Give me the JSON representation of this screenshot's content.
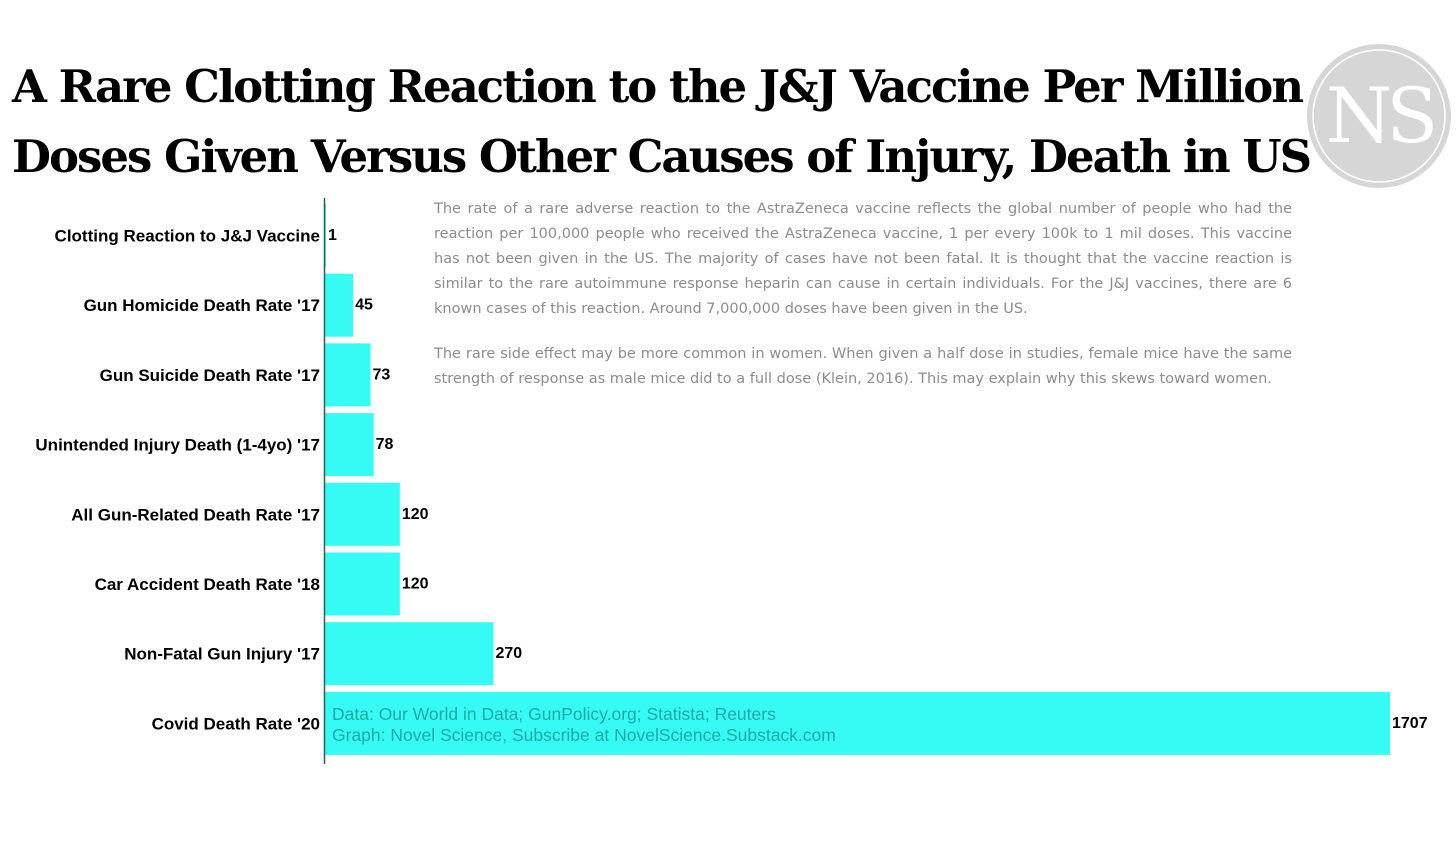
{
  "title_lines": [
    "A Rare Clotting Reaction to the J&J Vaccine Per Million",
    "Doses Given Versus Other Causes of Injury, Death in US"
  ],
  "logo_text": "NS",
  "notes": [
    "The rate of a rare adverse reaction to the AstraZeneca vaccine reflects the global number of people who had the reaction per 100,000 people who received the AstraZeneca vaccine, 1 per every 100k to 1 mil doses. This vaccine has not been given in the US. The majority of cases have not been fatal. It is thought that the vaccine reaction is similar to the rare autoimmune response heparin can cause in certain individuals. For the J&J vaccines, there are 6 known cases of this reaction. Around 7,000,000 doses have been given in the US.",
    "The rare side effect may be more common in women. When given a half dose in studies, female mice have the same strength of response as male mice did to a full dose (Klein, 2016). This may explain why this skews toward women."
  ],
  "source_lines": [
    "Data: Our World in Data; GunPolicy.org; Statista; Reuters",
    "Graph: Novel Science, Subscribe at NovelScience.Substack.com"
  ],
  "colors": {
    "bar": "#35fbf4",
    "axis": "#2e5e58",
    "logo_circle": "#d6d6d6"
  },
  "chart_data": {
    "type": "bar",
    "orientation": "horizontal",
    "categories": [
      "Clotting Reaction to J&J Vaccine",
      "Gun Homicide Death Rate '17",
      "Gun Suicide Death Rate '17",
      "Unintended Injury Death (1-4yo) '17",
      "All Gun-Related Death Rate '17",
      "Car Accident Death Rate '18",
      "Non-Fatal Gun Injury '17",
      "Covid Death Rate '20"
    ],
    "values": [
      1,
      45,
      73,
      78,
      120,
      120,
      270,
      1707
    ],
    "data_labels": [
      "1",
      "45",
      "73",
      "78",
      "120",
      "120",
      "270",
      "1707"
    ],
    "xlim": [
      0,
      1707
    ],
    "grid": false,
    "legend": "none"
  }
}
